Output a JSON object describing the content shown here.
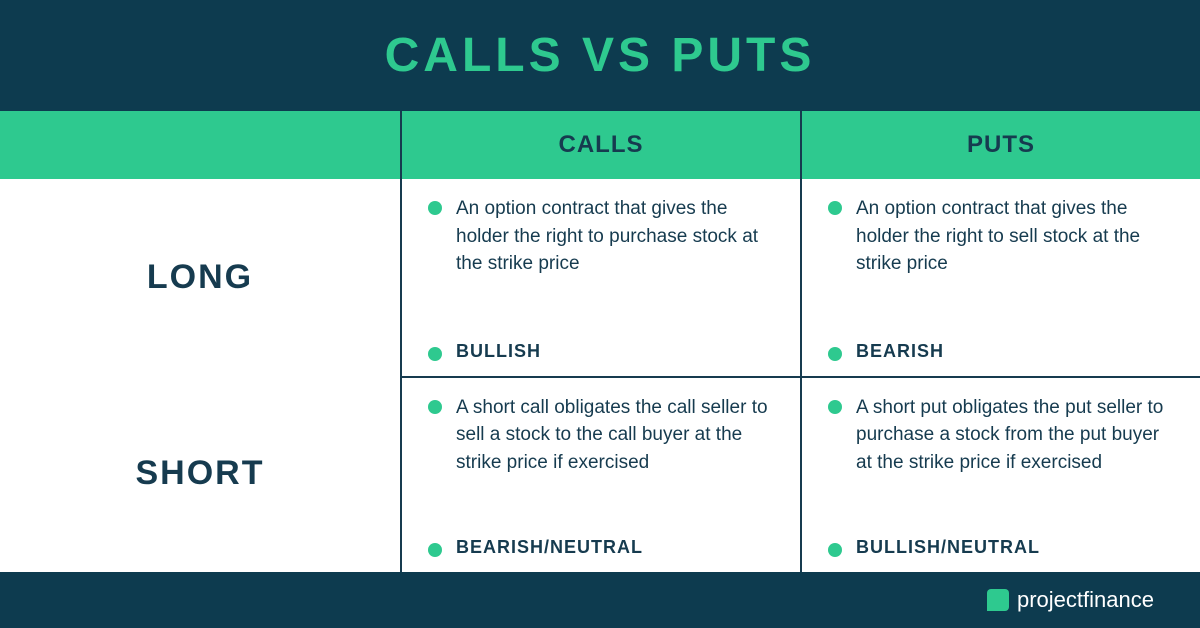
{
  "title": "CALLS VS PUTS",
  "colors": {
    "bg_dark": "#0d3b4f",
    "accent_green": "#2ec98f",
    "white": "#ffffff",
    "text_dark": "#163b4f",
    "border": "#163b4f",
    "footer_text": "#ffffff"
  },
  "fonts": {
    "title_size": "48px",
    "col_header_size": "24px",
    "row_label_size": "34px",
    "body_size": "19px",
    "sentiment_size": "18px",
    "footer_size": "22px"
  },
  "table": {
    "columns": [
      "CALLS",
      "PUTS"
    ],
    "rows": [
      {
        "label": "LONG",
        "cells": [
          {
            "desc": "An option contract that gives the holder the right to purchase stock at the strike price",
            "sentiment": "BULLISH"
          },
          {
            "desc": "An option contract that gives the holder the right to sell stock at the strike price",
            "sentiment": "BEARISH"
          }
        ]
      },
      {
        "label": "SHORT",
        "cells": [
          {
            "desc": "A short call obligates the call seller to sell a stock to the call buyer at the strike price if exercised",
            "sentiment": "BEARISH/NEUTRAL"
          },
          {
            "desc": "A short put obligates the put seller to purchase a stock from the put buyer at the strike price if exercised",
            "sentiment": "BULLISH/NEUTRAL"
          }
        ]
      }
    ]
  },
  "footer": {
    "brand1": "project",
    "brand2": "finance"
  }
}
